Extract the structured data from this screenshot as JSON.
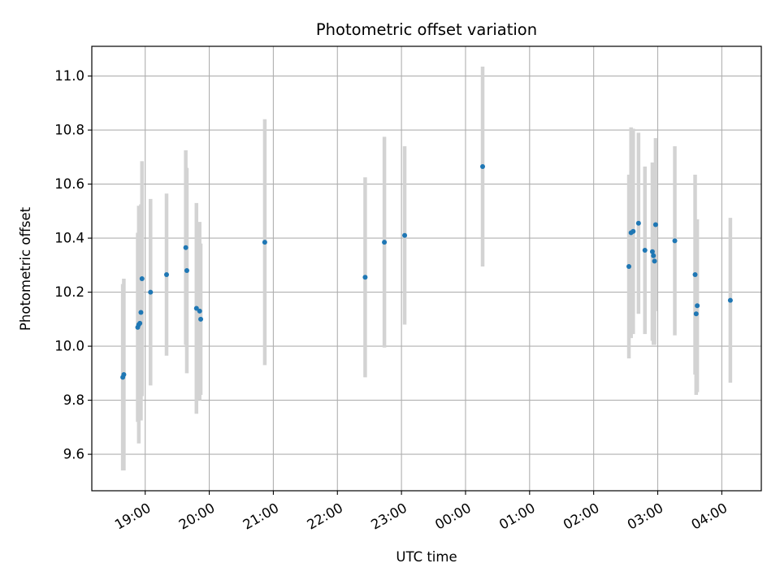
{
  "chart_data": {
    "type": "scatter",
    "title": "Photometric offset variation",
    "xlabel": "UTC time",
    "ylabel": "Photometric offset",
    "x_axis_kind": "time",
    "x_ticks": [
      "19:00",
      "20:00",
      "21:00",
      "22:00",
      "23:00",
      "00:00",
      "01:00",
      "02:00",
      "03:00",
      "04:00"
    ],
    "xlim": [
      "18:10",
      "04:37"
    ],
    "ylim": [
      9.465,
      11.11
    ],
    "y_ticks": [
      "9.6",
      "9.8",
      "10.0",
      "10.2",
      "10.4",
      "10.6",
      "10.8",
      "11.0"
    ],
    "grid": true,
    "legend": "none",
    "colors": {
      "point": "#1f77b4",
      "errorbar": "#d3d3d3",
      "grid": "#b0b0b0"
    },
    "points": [
      {
        "time": "18:39",
        "y": 9.885,
        "err": 0.345
      },
      {
        "time": "18:40",
        "y": 9.895,
        "err": 0.355
      },
      {
        "time": "18:53",
        "y": 10.07,
        "err": 0.35
      },
      {
        "time": "18:54",
        "y": 10.08,
        "err": 0.44
      },
      {
        "time": "18:55",
        "y": 10.085,
        "err": 0.36
      },
      {
        "time": "18:56",
        "y": 10.125,
        "err": 0.4
      },
      {
        "time": "18:57",
        "y": 10.25,
        "err": 0.435
      },
      {
        "time": "19:05",
        "y": 10.2,
        "err": 0.345
      },
      {
        "time": "19:20",
        "y": 10.265,
        "err": 0.3
      },
      {
        "time": "19:38",
        "y": 10.365,
        "err": 0.36
      },
      {
        "time": "19:39",
        "y": 10.28,
        "err": 0.38
      },
      {
        "time": "19:48",
        "y": 10.14,
        "err": 0.39
      },
      {
        "time": "19:51",
        "y": 10.13,
        "err": 0.33
      },
      {
        "time": "19:52",
        "y": 10.1,
        "err": 0.28
      },
      {
        "time": "20:52",
        "y": 10.385,
        "err": 0.455
      },
      {
        "time": "22:26",
        "y": 10.255,
        "err": 0.37
      },
      {
        "time": "22:44",
        "y": 10.385,
        "err": 0.39
      },
      {
        "time": "23:03",
        "y": 10.41,
        "err": 0.33
      },
      {
        "time": "00:16",
        "y": 10.665,
        "err": 0.37
      },
      {
        "time": "02:33",
        "y": 10.295,
        "err": 0.34
      },
      {
        "time": "02:35",
        "y": 10.42,
        "err": 0.39
      },
      {
        "time": "02:37",
        "y": 10.425,
        "err": 0.38
      },
      {
        "time": "02:42",
        "y": 10.455,
        "err": 0.335
      },
      {
        "time": "02:48",
        "y": 10.355,
        "err": 0.31
      },
      {
        "time": "02:55",
        "y": 10.35,
        "err": 0.33
      },
      {
        "time": "02:56",
        "y": 10.335,
        "err": 0.33
      },
      {
        "time": "02:57",
        "y": 10.315,
        "err": 0.31
      },
      {
        "time": "02:58",
        "y": 10.45,
        "err": 0.32
      },
      {
        "time": "03:16",
        "y": 10.39,
        "err": 0.35
      },
      {
        "time": "03:35",
        "y": 10.265,
        "err": 0.37
      },
      {
        "time": "03:36",
        "y": 10.12,
        "err": 0.3
      },
      {
        "time": "03:37",
        "y": 10.15,
        "err": 0.32
      },
      {
        "time": "04:08",
        "y": 10.17,
        "err": 0.305
      }
    ]
  }
}
